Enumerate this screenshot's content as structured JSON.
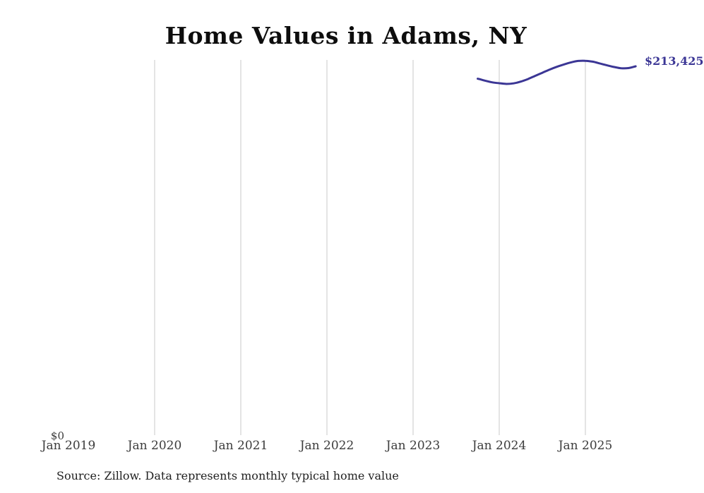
{
  "chart_data": {
    "type": "line",
    "title": "Home Values in Adams, NY",
    "legend": false,
    "grid": "vertical-only",
    "grid_color": "#c9c9c9",
    "line_color": "#3b3695",
    "end_label": "$213,425",
    "y_axis": {
      "zero_label": "$0",
      "min": 0
    },
    "x_ticks": [
      {
        "label": "Jan 2019",
        "month": "2019-01",
        "gridline": false
      },
      {
        "label": "Jan 2020",
        "month": "2020-01",
        "gridline": true
      },
      {
        "label": "Jan 2021",
        "month": "2021-01",
        "gridline": true
      },
      {
        "label": "Jan 2022",
        "month": "2022-01",
        "gridline": true
      },
      {
        "label": "Jan 2023",
        "month": "2023-01",
        "gridline": true
      },
      {
        "label": "Jan 2024",
        "month": "2024-01",
        "gridline": true
      },
      {
        "label": "Jan 2025",
        "month": "2025-01",
        "gridline": true
      }
    ],
    "series": [
      {
        "name": "Monthly typical home value",
        "color": "#3b3695",
        "points": [
          {
            "month": "2023-10",
            "value": 206300
          },
          {
            "month": "2023-11",
            "value": 205200
          },
          {
            "month": "2023-12",
            "value": 204200
          },
          {
            "month": "2024-01",
            "value": 203700
          },
          {
            "month": "2024-02",
            "value": 203300
          },
          {
            "month": "2024-03",
            "value": 203600
          },
          {
            "month": "2024-04",
            "value": 204600
          },
          {
            "month": "2024-05",
            "value": 206100
          },
          {
            "month": "2024-06",
            "value": 207900
          },
          {
            "month": "2024-07",
            "value": 209700
          },
          {
            "month": "2024-08",
            "value": 211500
          },
          {
            "month": "2024-09",
            "value": 213100
          },
          {
            "month": "2024-10",
            "value": 214500
          },
          {
            "month": "2024-11",
            "value": 215700
          },
          {
            "month": "2024-12",
            "value": 216500
          },
          {
            "month": "2025-01",
            "value": 216600
          },
          {
            "month": "2025-02",
            "value": 216100
          },
          {
            "month": "2025-03",
            "value": 215100
          },
          {
            "month": "2025-04",
            "value": 214000
          },
          {
            "month": "2025-05",
            "value": 213000
          },
          {
            "month": "2025-06",
            "value": 212300
          },
          {
            "month": "2025-07",
            "value": 212400
          },
          {
            "month": "2025-08",
            "value": 213425
          }
        ]
      }
    ]
  },
  "footer": {
    "source": "Source: Zillow. Data represents monthly typical home value"
  }
}
